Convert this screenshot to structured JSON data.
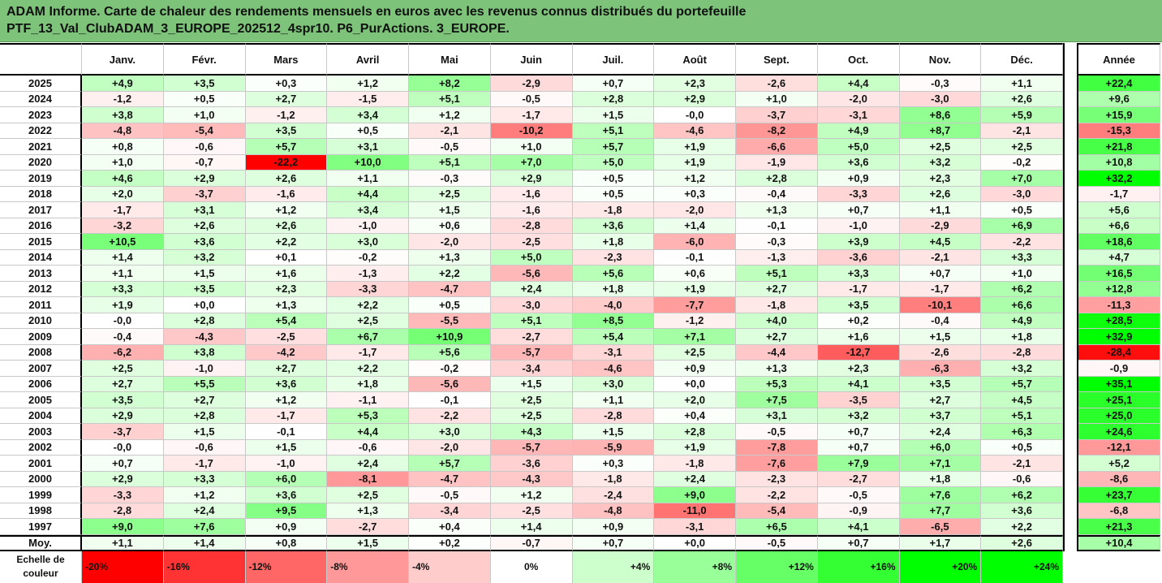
{
  "title": {
    "line1": "ADAM Informe. Carte de chaleur des rendements mensuels en euros avec les revenus connus distribués du portefeuille",
    "line2": "PTF_13_Val_ClubADAM_3_EUROPE_202512_4spr10. P6_PurActions. 3_EUROPE."
  },
  "chart_data": {
    "type": "heatmap",
    "columns": [
      "Janv.",
      "Févr.",
      "Mars",
      "Avril",
      "Mai",
      "Juin",
      "Juil.",
      "Août",
      "Sept.",
      "Oct.",
      "Nov.",
      "Déc."
    ],
    "annual_label": "Année",
    "rows": [
      {
        "year": "2025",
        "values": [
          "+4,9",
          "+3,5",
          "+0,3",
          "+1,2",
          "+8,2",
          "-2,9",
          "+0,7",
          "+2,3",
          "-2,6",
          "+4,4",
          "-0,3",
          "+1,1"
        ],
        "annual": "+22,4"
      },
      {
        "year": "2024",
        "values": [
          "-1,2",
          "+0,5",
          "+2,7",
          "-1,5",
          "+5,1",
          "-0,5",
          "+2,8",
          "+2,9",
          "+1,0",
          "-2,0",
          "-3,0",
          "+2,6"
        ],
        "annual": "+9,6"
      },
      {
        "year": "2023",
        "values": [
          "+3,8",
          "+1,0",
          "-1,2",
          "+3,4",
          "+1,2",
          "-1,7",
          "+1,5",
          "-0,0",
          "-3,7",
          "-3,1",
          "+8,6",
          "+5,9"
        ],
        "annual": "+15,9"
      },
      {
        "year": "2022",
        "values": [
          "-4,8",
          "-5,4",
          "+3,5",
          "+0,5",
          "-2,1",
          "-10,2",
          "+5,1",
          "-4,6",
          "-8,2",
          "+4,9",
          "+8,7",
          "-2,1"
        ],
        "annual": "-15,3"
      },
      {
        "year": "2021",
        "values": [
          "+0,8",
          "-0,6",
          "+5,7",
          "+3,1",
          "-0,5",
          "+1,0",
          "+5,7",
          "+1,9",
          "-6,6",
          "+5,0",
          "+2,5",
          "+2,5"
        ],
        "annual": "+21,8"
      },
      {
        "year": "2020",
        "values": [
          "+1,0",
          "-0,7",
          "-22,2",
          "+10,0",
          "+5,1",
          "+7,0",
          "+5,0",
          "+1,9",
          "-1,9",
          "+3,6",
          "+3,2",
          "-0,2"
        ],
        "annual": "+10,8"
      },
      {
        "year": "2019",
        "values": [
          "+4,6",
          "+2,9",
          "+2,6",
          "+1,1",
          "-0,3",
          "+2,9",
          "+0,5",
          "+1,2",
          "+2,8",
          "+0,9",
          "+2,3",
          "+7,0"
        ],
        "annual": "+32,2"
      },
      {
        "year": "2018",
        "values": [
          "+2,0",
          "-3,7",
          "-1,6",
          "+4,4",
          "+2,5",
          "-1,6",
          "+0,5",
          "+0,3",
          "-0,4",
          "-3,3",
          "+2,6",
          "-3,0"
        ],
        "annual": "-1,7"
      },
      {
        "year": "2017",
        "values": [
          "-1,7",
          "+3,1",
          "+1,2",
          "+3,4",
          "+1,5",
          "-1,6",
          "-1,8",
          "-2,0",
          "+1,3",
          "+0,7",
          "+1,1",
          "+0,5"
        ],
        "annual": "+5,6"
      },
      {
        "year": "2016",
        "values": [
          "-3,2",
          "+2,6",
          "+2,6",
          "-1,0",
          "+0,6",
          "-2,8",
          "+3,6",
          "+1,4",
          "-0,1",
          "-1,0",
          "-2,9",
          "+6,9"
        ],
        "annual": "+6,6"
      },
      {
        "year": "2015",
        "values": [
          "+10,5",
          "+3,6",
          "+2,2",
          "+3,0",
          "-2,0",
          "-2,5",
          "+1,8",
          "-6,0",
          "-0,3",
          "+3,9",
          "+4,5",
          "-2,2"
        ],
        "annual": "+18,6"
      },
      {
        "year": "2014",
        "values": [
          "+1,4",
          "+3,2",
          "+0,1",
          "-0,2",
          "+1,3",
          "+5,0",
          "-2,3",
          "-0,1",
          "-1,3",
          "-3,6",
          "-2,1",
          "+3,3"
        ],
        "annual": "+4,7"
      },
      {
        "year": "2013",
        "values": [
          "+1,1",
          "+1,5",
          "+1,6",
          "-1,3",
          "+2,2",
          "-5,6",
          "+5,6",
          "+0,6",
          "+5,1",
          "+3,3",
          "+0,7",
          "+1,0"
        ],
        "annual": "+16,5"
      },
      {
        "year": "2012",
        "values": [
          "+3,3",
          "+3,5",
          "+2,3",
          "-3,3",
          "-4,7",
          "+2,4",
          "+1,8",
          "+1,9",
          "+2,7",
          "-1,7",
          "-1,7",
          "+6,2"
        ],
        "annual": "+12,8"
      },
      {
        "year": "2011",
        "values": [
          "+1,9",
          "+0,0",
          "+1,3",
          "+2,2",
          "+0,5",
          "-3,0",
          "-4,0",
          "-7,7",
          "-1,8",
          "+3,5",
          "-10,1",
          "+6,6"
        ],
        "annual": "-11,3"
      },
      {
        "year": "2010",
        "values": [
          "-0,0",
          "+2,8",
          "+5,4",
          "+2,5",
          "-5,5",
          "+5,1",
          "+8,5",
          "-1,2",
          "+4,0",
          "+0,2",
          "-0,4",
          "+4,9"
        ],
        "annual": "+28,5"
      },
      {
        "year": "2009",
        "values": [
          "-0,4",
          "-4,3",
          "-2,5",
          "+6,7",
          "+10,9",
          "-2,7",
          "+5,4",
          "+7,1",
          "+2,7",
          "+1,6",
          "+1,5",
          "+1,8"
        ],
        "annual": "+32,9"
      },
      {
        "year": "2008",
        "values": [
          "-6,2",
          "+3,8",
          "-4,2",
          "-1,7",
          "+5,6",
          "-5,7",
          "-3,1",
          "+2,5",
          "-4,4",
          "-12,7",
          "-2,6",
          "-2,8"
        ],
        "annual": "-28,4"
      },
      {
        "year": "2007",
        "values": [
          "+2,5",
          "-1,0",
          "+2,7",
          "+2,2",
          "-0,2",
          "-3,4",
          "-4,6",
          "+0,9",
          "+1,3",
          "+2,3",
          "-6,3",
          "+3,2"
        ],
        "annual": "-0,9"
      },
      {
        "year": "2006",
        "values": [
          "+2,7",
          "+5,5",
          "+3,6",
          "+1,8",
          "-5,6",
          "+1,5",
          "+3,0",
          "+0,0",
          "+5,3",
          "+4,1",
          "+3,5",
          "+5,7"
        ],
        "annual": "+35,1"
      },
      {
        "year": "2005",
        "values": [
          "+3,5",
          "+2,7",
          "+1,2",
          "-1,1",
          "-0,1",
          "+2,5",
          "+1,1",
          "+2,0",
          "+7,5",
          "-3,5",
          "+2,7",
          "+4,5"
        ],
        "annual": "+25,1"
      },
      {
        "year": "2004",
        "values": [
          "+2,9",
          "+2,8",
          "-1,7",
          "+5,3",
          "-2,2",
          "+2,5",
          "-2,8",
          "+0,4",
          "+3,1",
          "+3,2",
          "+3,7",
          "+5,1"
        ],
        "annual": "+25,0"
      },
      {
        "year": "2003",
        "values": [
          "-3,7",
          "+1,5",
          "-0,1",
          "+4,4",
          "+3,0",
          "+4,3",
          "+1,5",
          "+2,8",
          "-0,5",
          "+0,7",
          "+2,4",
          "+6,3"
        ],
        "annual": "+24,6"
      },
      {
        "year": "2002",
        "values": [
          "-0,0",
          "-0,6",
          "+1,5",
          "-0,6",
          "-2,0",
          "-5,7",
          "-5,9",
          "+1,9",
          "-7,8",
          "+0,7",
          "+6,0",
          "+0,5"
        ],
        "annual": "-12,1"
      },
      {
        "year": "2001",
        "values": [
          "+0,7",
          "-1,7",
          "-1,0",
          "+2,4",
          "+5,7",
          "-3,6",
          "+0,3",
          "-1,8",
          "-7,6",
          "+7,9",
          "+7,1",
          "-2,1"
        ],
        "annual": "+5,2"
      },
      {
        "year": "2000",
        "values": [
          "+2,9",
          "+3,3",
          "+6,0",
          "-8,1",
          "-4,7",
          "-4,3",
          "-1,8",
          "+2,4",
          "-2,3",
          "-2,7",
          "+1,8",
          "-0,6"
        ],
        "annual": "-8,6"
      },
      {
        "year": "1999",
        "values": [
          "-3,3",
          "+1,2",
          "+3,6",
          "+2,5",
          "-0,5",
          "+1,2",
          "-2,4",
          "+9,0",
          "-2,2",
          "-0,5",
          "+7,6",
          "+6,2"
        ],
        "annual": "+23,7"
      },
      {
        "year": "1998",
        "values": [
          "-2,8",
          "+2,4",
          "+9,5",
          "+1,3",
          "-3,4",
          "-2,5",
          "-4,8",
          "-11,0",
          "-5,4",
          "-0,9",
          "+7,7",
          "+3,6"
        ],
        "annual": "-6,8"
      },
      {
        "year": "1997",
        "values": [
          "+9,0",
          "+7,6",
          "+0,9",
          "-2,7",
          "+0,4",
          "+1,4",
          "+0,9",
          "-3,1",
          "+6,5",
          "+4,1",
          "-6,5",
          "+2,2"
        ],
        "annual": "+21,3"
      }
    ],
    "average": {
      "label": "Moy.",
      "values": [
        "+1,1",
        "+1,4",
        "+0,8",
        "+1,5",
        "+0,2",
        "-0,7",
        "+0,7",
        "+0,0",
        "-0,5",
        "+0,7",
        "+1,7",
        "+2,6"
      ],
      "annual": "+10,4"
    },
    "color_scale": {
      "label": "Echelle de couleur",
      "stops": [
        "-20%",
        "-16%",
        "-12%",
        "-8%",
        "-4%",
        "0%",
        "+4%",
        "+8%",
        "+12%",
        "+16%",
        "+20%",
        "+24%"
      ],
      "negative_color": "#ff0000",
      "neutral_color": "#ffffff",
      "positive_color": "#00ff00"
    }
  }
}
